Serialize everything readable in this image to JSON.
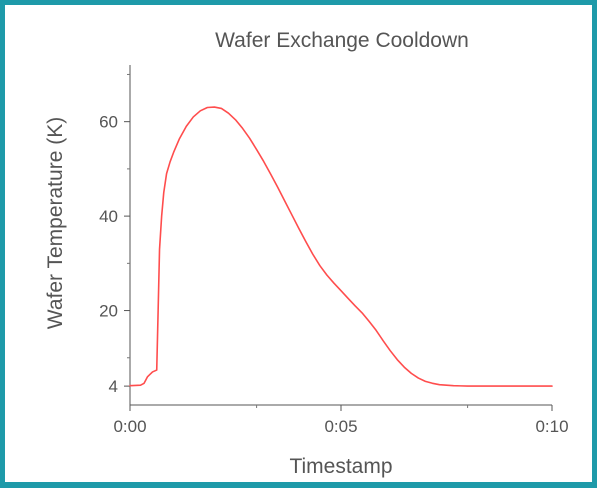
{
  "chart_data": {
    "type": "line",
    "title": "Wafer Exchange Cooldown",
    "xlabel": "Timestamp",
    "ylabel": "Wafer Temperature (K)",
    "xlim": [
      0,
      600
    ],
    "ylim": [
      0,
      72
    ],
    "x_ticks": [
      {
        "value": 0,
        "label": "0:00"
      },
      {
        "value": 300,
        "label": "0:05"
      },
      {
        "value": 600,
        "label": "0:10"
      }
    ],
    "y_ticks": [
      {
        "value": 4,
        "label": "4"
      },
      {
        "value": 20,
        "label": "20"
      },
      {
        "value": 40,
        "label": "40"
      },
      {
        "value": 60,
        "label": "60"
      }
    ],
    "grid": false,
    "series": [
      {
        "color": "#ff4d4d",
        "x": [
          0,
          15,
          20,
          25,
          32,
          38,
          40,
          42,
          45,
          48,
          52,
          57,
          62,
          70,
          80,
          90,
          100,
          110,
          120,
          130,
          140,
          150,
          160,
          170,
          180,
          190,
          200,
          210,
          220,
          230,
          240,
          250,
          260,
          270,
          280,
          290,
          300,
          310,
          320,
          330,
          340,
          350,
          360,
          370,
          380,
          390,
          400,
          410,
          420,
          430,
          440,
          450,
          460,
          470,
          480,
          490,
          500,
          510,
          520,
          530,
          540,
          560,
          580,
          600
        ],
        "y": [
          4.1,
          4.2,
          4.6,
          6.0,
          7.0,
          7.4,
          20.0,
          33.0,
          40.0,
          45.0,
          49.0,
          51.5,
          53.5,
          56.3,
          59.0,
          61.0,
          62.3,
          63.0,
          63.1,
          62.8,
          61.8,
          60.4,
          58.6,
          56.5,
          54.1,
          51.6,
          48.9,
          46.1,
          43.2,
          40.3,
          37.4,
          34.6,
          31.9,
          29.5,
          27.5,
          25.8,
          24.2,
          22.6,
          21.0,
          19.5,
          17.7,
          15.8,
          13.6,
          11.5,
          9.6,
          8.0,
          6.7,
          5.7,
          5.0,
          4.6,
          4.3,
          4.2,
          4.1,
          4.05,
          4.0,
          4.0,
          4.0,
          4.0,
          4.0,
          4.0,
          4.0,
          4.0,
          4.0,
          4.0
        ]
      }
    ]
  }
}
